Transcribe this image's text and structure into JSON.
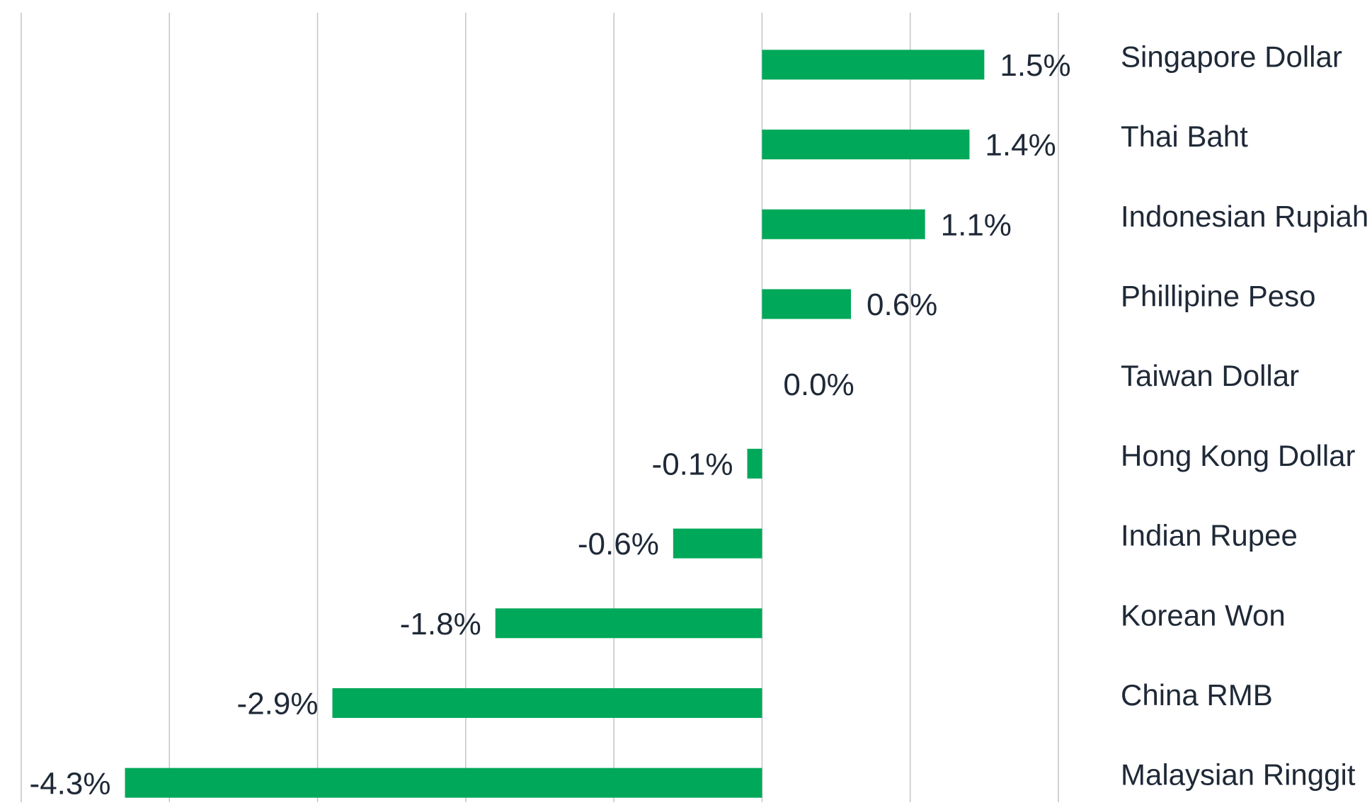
{
  "chart_data": {
    "type": "bar",
    "orientation": "horizontal",
    "categories": [
      "Singapore Dollar",
      "Thai Baht",
      "Indonesian Rupiah",
      "Phillipine Peso",
      "Taiwan Dollar",
      "Hong Kong Dollar",
      "Indian Rupee",
      "Korean Won",
      "China RMB",
      "Malaysian Ringgit"
    ],
    "values": [
      1.5,
      1.4,
      1.1,
      0.6,
      0.0,
      -0.1,
      -0.6,
      -1.8,
      -2.9,
      -4.3
    ],
    "data_labels": [
      "1.5%",
      "1.4%",
      "1.1%",
      "0.6%",
      "0.0%",
      "-0.1%",
      "-0.6%",
      "-1.8%",
      "-2.9%",
      "-4.3%"
    ],
    "xlim": [
      -5,
      2
    ],
    "grid_step": 1,
    "grid": true,
    "bar_color": "#00a859",
    "text_color": "#1f2937",
    "grid_color": "#c4c4c8",
    "category_label_position": "right"
  }
}
